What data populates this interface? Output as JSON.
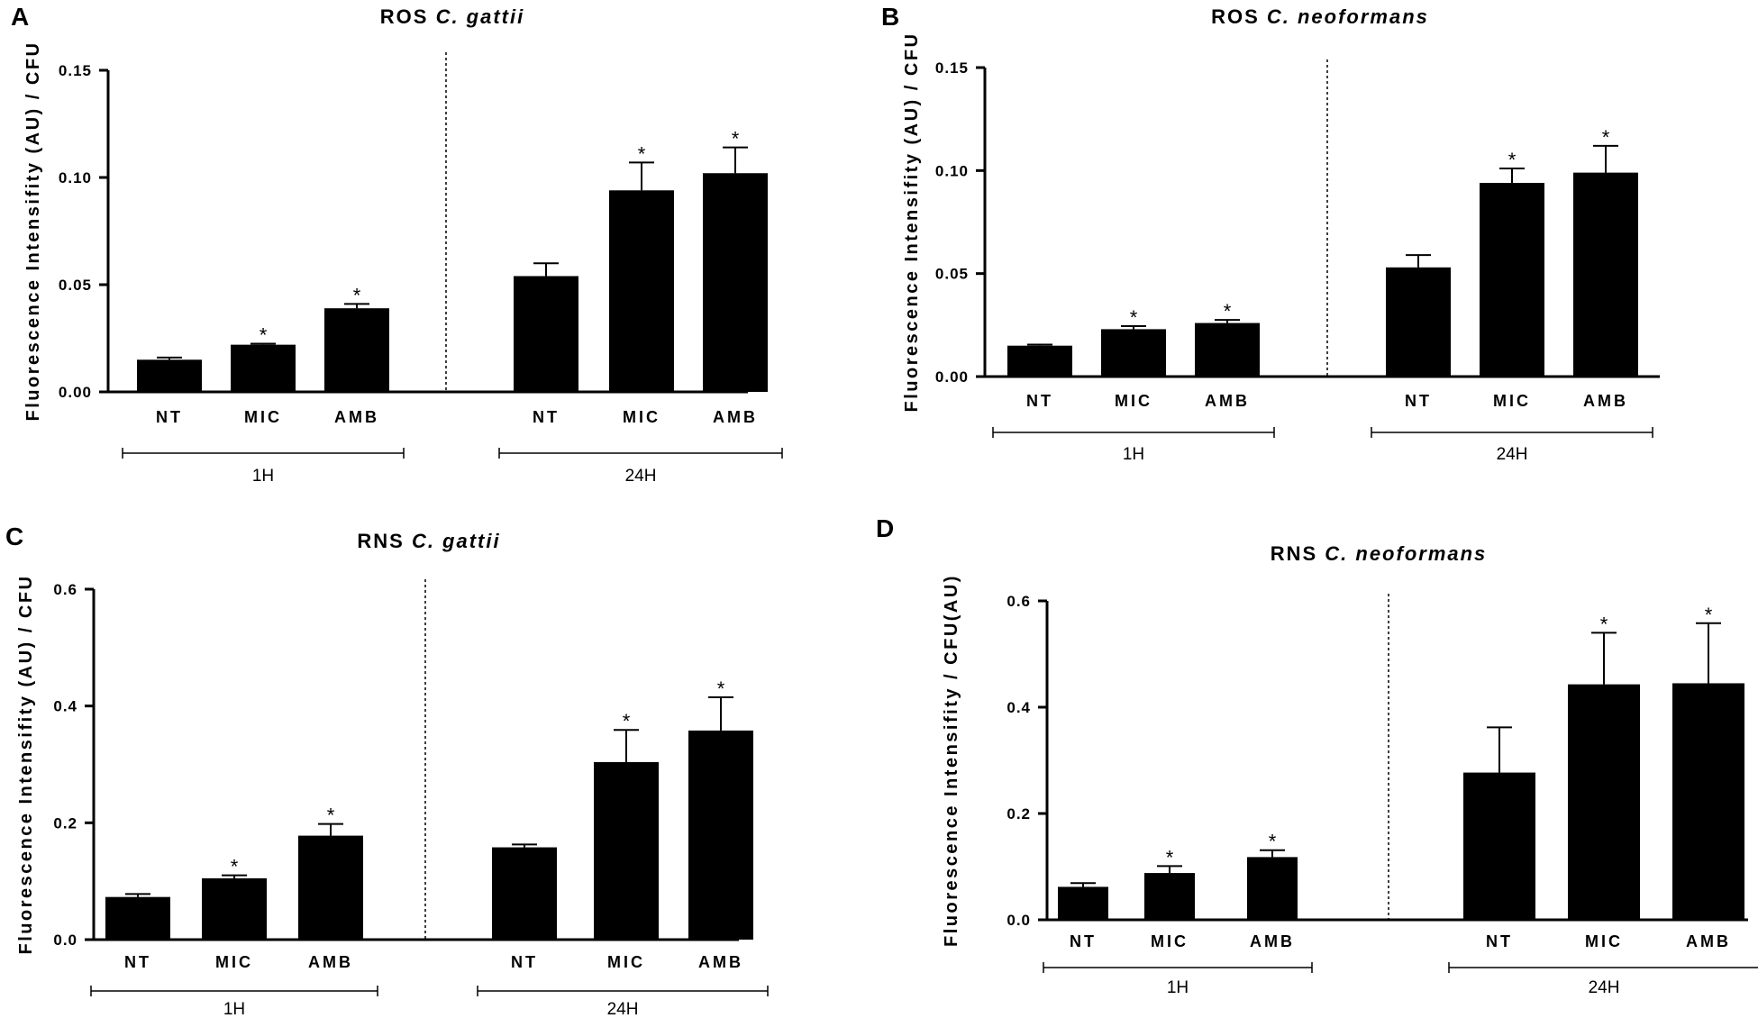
{
  "chart_data": [
    {
      "type": "bar",
      "panel_label": "A",
      "title": "ROS",
      "title_italic": "C. gattii",
      "ylabel": "Fluorescence Intensifity (AU) / CFU",
      "ylim": [
        0,
        0.15
      ],
      "yticks": [
        0,
        0.05,
        0.1,
        0.15
      ],
      "ytick_labels": [
        "0.00",
        "0.05",
        "0.10",
        "0.15"
      ],
      "groups": [
        {
          "name": "1H",
          "categories": [
            "NT",
            "MIC",
            "AMB"
          ],
          "values": [
            0.015,
            0.022,
            0.039
          ],
          "errors": [
            0.001,
            0.0005,
            0.002
          ],
          "significance": [
            "",
            "*",
            "*"
          ]
        },
        {
          "name": "24H",
          "categories": [
            "NT",
            "MIC",
            "AMB"
          ],
          "values": [
            0.054,
            0.094,
            0.102
          ],
          "errors": [
            0.006,
            0.013,
            0.012
          ],
          "significance": [
            "",
            "*",
            "*"
          ]
        }
      ]
    },
    {
      "type": "bar",
      "panel_label": "B",
      "title": "ROS",
      "title_italic": "C. neoformans",
      "ylabel": "Fluorescence Intensifity (AU) / CFU",
      "ylim": [
        0,
        0.15
      ],
      "yticks": [
        0,
        0.05,
        0.1,
        0.15
      ],
      "ytick_labels": [
        "0.00",
        "0.05",
        "0.10",
        "0.15"
      ],
      "groups": [
        {
          "name": "1H",
          "categories": [
            "NT",
            "MIC",
            "AMB"
          ],
          "values": [
            0.015,
            0.023,
            0.026
          ],
          "errors": [
            0.0005,
            0.0015,
            0.0015
          ],
          "significance": [
            "",
            "*",
            "*"
          ]
        },
        {
          "name": "24H",
          "categories": [
            "NT",
            "MIC",
            "AMB"
          ],
          "values": [
            0.053,
            0.094,
            0.099
          ],
          "errors": [
            0.006,
            0.007,
            0.013
          ],
          "significance": [
            "",
            "*",
            "*"
          ]
        }
      ]
    },
    {
      "type": "bar",
      "panel_label": "C",
      "title": "RNS",
      "title_italic": "C. gattii",
      "ylabel": "Fluorescence Intensifity (AU) / CFU",
      "ylim": [
        0,
        0.6
      ],
      "yticks": [
        0,
        0.2,
        0.4,
        0.6
      ],
      "ytick_labels": [
        "0.0",
        "0.2",
        "0.4",
        "0.6"
      ],
      "groups": [
        {
          "name": "1H",
          "categories": [
            "NT",
            "MIC",
            "AMB"
          ],
          "values": [
            0.073,
            0.105,
            0.178
          ],
          "errors": [
            0.005,
            0.005,
            0.02
          ],
          "significance": [
            "",
            "*",
            "*"
          ]
        },
        {
          "name": "24H",
          "categories": [
            "NT",
            "MIC",
            "AMB"
          ],
          "values": [
            0.158,
            0.304,
            0.358
          ],
          "errors": [
            0.005,
            0.055,
            0.057
          ],
          "significance": [
            "",
            "*",
            "*"
          ]
        }
      ]
    },
    {
      "type": "bar",
      "panel_label": "D",
      "title": "RNS",
      "title_italic": "C. neoformans",
      "ylabel": "Fluorescence Intensifity / CFU(AU)",
      "ylim": [
        0,
        0.6
      ],
      "yticks": [
        0,
        0.2,
        0.4,
        0.6
      ],
      "ytick_labels": [
        "0.0",
        "0.2",
        "0.4",
        "0.6"
      ],
      "groups": [
        {
          "name": "1H",
          "categories": [
            "NT",
            "MIC",
            "AMB"
          ],
          "values": [
            0.062,
            0.088,
            0.118
          ],
          "errors": [
            0.007,
            0.013,
            0.013
          ],
          "significance": [
            "",
            "*",
            "*"
          ]
        },
        {
          "name": "24H",
          "categories": [
            "NT",
            "MIC",
            "AMB"
          ],
          "values": [
            0.277,
            0.443,
            0.445
          ],
          "errors": [
            0.085,
            0.097,
            0.113
          ],
          "significance": [
            "",
            "*",
            "*"
          ]
        }
      ]
    }
  ]
}
